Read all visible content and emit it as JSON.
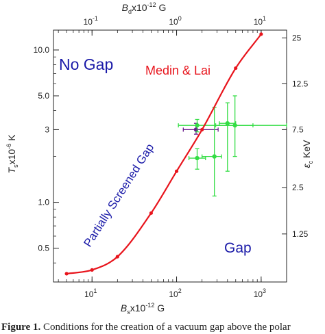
{
  "chart_data": {
    "type": "scatter",
    "axes": {
      "bottom": {
        "label_main": "B",
        "label_sub": "s",
        "label_rest": "x10",
        "label_sup": "-12",
        "label_unit": " G",
        "scale": "log",
        "range": [
          3.5,
          2000
        ],
        "major_ticks": [
          10,
          100,
          1000
        ],
        "tick_labels": [
          {
            "base": "10",
            "exp": "1"
          },
          {
            "base": "10",
            "exp": "2"
          },
          {
            "base": "10",
            "exp": "3"
          }
        ]
      },
      "top": {
        "label_main": "B",
        "label_sub": "d",
        "label_rest": "x10",
        "label_sup": "-12",
        "label_unit": " G",
        "scale": "log",
        "range": [
          0.035,
          20
        ],
        "major_ticks": [
          0.1,
          1,
          10
        ],
        "tick_labels": [
          {
            "base": "10",
            "exp": "-1"
          },
          {
            "base": "10",
            "exp": "0"
          },
          {
            "base": "10",
            "exp": "1"
          }
        ]
      },
      "left": {
        "label_main": "T",
        "label_sub": "s",
        "label_rest": "x10",
        "label_sup": "-6",
        "label_unit": " K",
        "scale": "log",
        "range": [
          0.3,
          13.5
        ],
        "major_ticks": [
          0.5,
          1.0,
          3,
          5.0,
          10.0
        ],
        "tick_labels": [
          "0.5",
          "1.0",
          "3",
          "5.0",
          "10.0"
        ]
      },
      "right": {
        "label_main": "ε",
        "label_sub": "c",
        "label_unit": "KeV",
        "tick_values_T": [
          0.62,
          1.25,
          3.0,
          6.0,
          12.0
        ],
        "tick_labels": [
          "1.25",
          "2.5",
          "7.5",
          "12.5",
          "25"
        ]
      }
    },
    "regions": [
      {
        "text": "No Gap",
        "color": "#1a1aa8"
      },
      {
        "text": "Gap",
        "color": "#1a1aa8"
      },
      {
        "text": "Partially Screened Gap",
        "color": "#1a1aa8"
      }
    ],
    "curve": {
      "name": "Medin & Lai",
      "color": "#e8141c",
      "points": [
        {
          "x": 5,
          "y": 0.34
        },
        {
          "x": 10,
          "y": 0.36
        },
        {
          "x": 20,
          "y": 0.44
        },
        {
          "x": 50,
          "y": 0.85
        },
        {
          "x": 100,
          "y": 1.6
        },
        {
          "x": 200,
          "y": 3.0
        },
        {
          "x": 500,
          "y": 7.6
        },
        {
          "x": 1000,
          "y": 12.7
        }
      ]
    },
    "observations": [
      {
        "x": 170,
        "xerr": [
          120,
          310
        ],
        "y": 3.0,
        "yerr": [
          2.8,
          3.3
        ],
        "color": "#6a1a8c"
      },
      {
        "x": 175,
        "xerr": [
          105,
          2000
        ],
        "y": 3.2,
        "yerr": [
          2.9,
          3.5
        ],
        "color": "#33dd44"
      },
      {
        "x": 175,
        "xerr": [
          140,
          220
        ],
        "y": 1.95,
        "yerr": [
          1.65,
          2.25
        ],
        "color": "#33dd44"
      },
      {
        "x": 280,
        "xerr": [
          200,
          340
        ],
        "y": 2.0,
        "yerr": [
          1.1,
          4.2
        ],
        "color": "#33dd44"
      },
      {
        "x": 400,
        "xerr": [
          320,
          500
        ],
        "y": 3.3,
        "yerr": [
          1.6,
          4.5
        ],
        "color": "#33dd44"
      },
      {
        "x": 490,
        "xerr": [
          290,
          800
        ],
        "y": 3.2,
        "yerr": [
          2.0,
          5.0
        ],
        "color": "#33dd44"
      }
    ]
  },
  "caption": {
    "label": "Figure 1.",
    "text": " Conditions for the creation of a vacuum gap above the polar"
  }
}
